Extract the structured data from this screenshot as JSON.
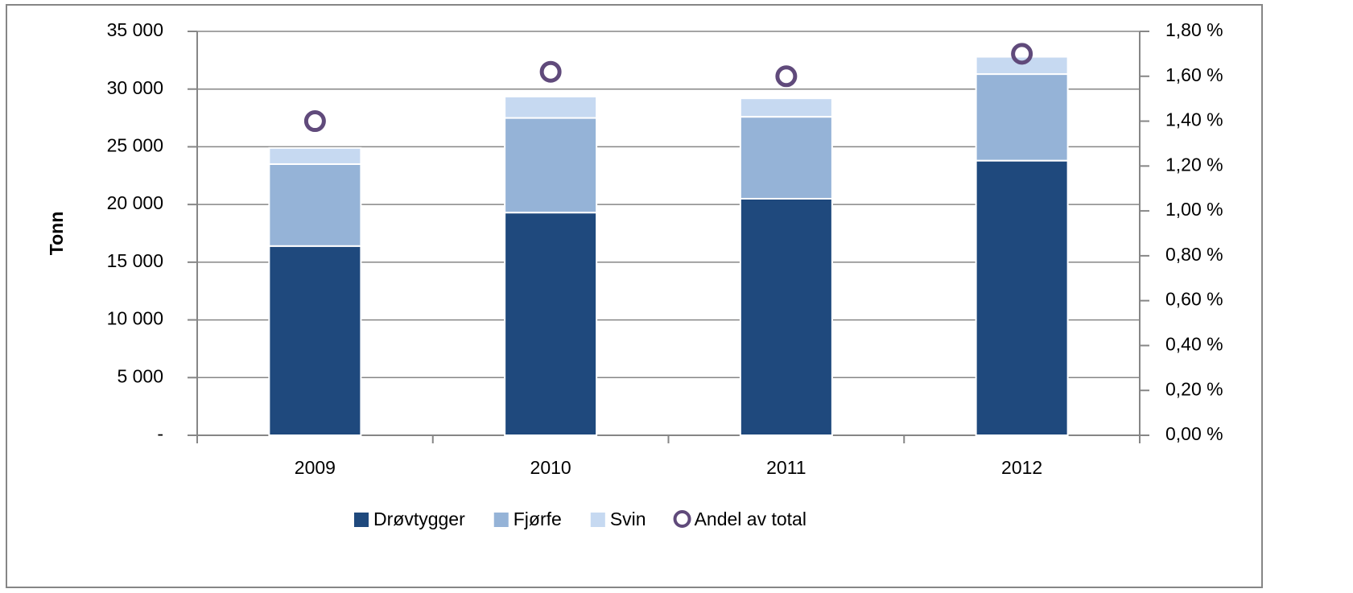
{
  "chart_data": {
    "type": "stacked_bar",
    "y_label": "Tonn",
    "categories": [
      "2009",
      "2010",
      "2011",
      "2012"
    ],
    "series": [
      {
        "name": "Drøvtygger",
        "color": "#1f497d",
        "values": [
          16400,
          19300,
          20500,
          23800
        ]
      },
      {
        "name": "Fjørfe",
        "color": "#95b3d7",
        "values": [
          7100,
          8200,
          7100,
          7500
        ]
      },
      {
        "name": "Svin",
        "color": "#c6d9f1",
        "values": [
          1400,
          1850,
          1600,
          1500
        ]
      },
      {
        "name": "Andel av total",
        "color": "#604a7b",
        "axis": "y2",
        "marker": "circle",
        "values": [
          1.4,
          1.62,
          1.6,
          1.7
        ]
      }
    ],
    "ylim": [
      0,
      35000
    ],
    "yticks": [
      {
        "value": 0,
        "label": "-"
      },
      {
        "value": 5000,
        "label": "5 000"
      },
      {
        "value": 10000,
        "label": "10 000"
      },
      {
        "value": 15000,
        "label": "15 000"
      },
      {
        "value": 20000,
        "label": "20 000"
      },
      {
        "value": 25000,
        "label": "25 000"
      },
      {
        "value": 30000,
        "label": "30 000"
      },
      {
        "value": 35000,
        "label": "35 000"
      }
    ],
    "y2lim": [
      0,
      1.8
    ],
    "y2ticks": [
      {
        "value": 0,
        "label": "0,00 %"
      },
      {
        "value": 0.2,
        "label": "0,20 %"
      },
      {
        "value": 0.4,
        "label": "0,40 %"
      },
      {
        "value": 0.6,
        "label": "0,60 %"
      },
      {
        "value": 0.8,
        "label": "0,80 %"
      },
      {
        "value": 1.0,
        "label": "1,00 %"
      },
      {
        "value": 1.2,
        "label": "1,20 %"
      },
      {
        "value": 1.4,
        "label": "1,40 %"
      },
      {
        "value": 1.6,
        "label": "1,60 %"
      },
      {
        "value": 1.8,
        "label": "1,80 %"
      }
    ],
    "grid": true,
    "legend": "bottom"
  }
}
